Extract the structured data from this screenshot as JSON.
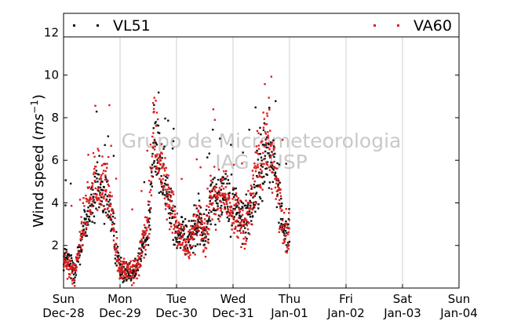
{
  "watermark": {
    "line1": "Grupo de Micrometeorologia",
    "line2": "IAG - USP"
  },
  "chart_data": {
    "type": "scatter",
    "title": "",
    "xlabel": "",
    "ylabel_main": "Wind speed (",
    "ylabel_unit": "ms",
    "ylabel_sup": "−1",
    "ylabel_close": ")",
    "xlim_days": [
      0,
      7
    ],
    "ylim": [
      0,
      12.9
    ],
    "yticks": [
      2,
      4,
      6,
      8,
      10,
      12
    ],
    "xticks": [
      {
        "day": 0,
        "weekday": "Sun",
        "date": "Dec-28"
      },
      {
        "day": 1,
        "weekday": "Mon",
        "date": "Dec-29"
      },
      {
        "day": 2,
        "weekday": "Tue",
        "date": "Dec-30"
      },
      {
        "day": 3,
        "weekday": "Wed",
        "date": "Dec-31"
      },
      {
        "day": 4,
        "weekday": "Thu",
        "date": "Jan-01"
      },
      {
        "day": 5,
        "weekday": "Fri",
        "date": "Jan-02"
      },
      {
        "day": 6,
        "weekday": "Sat",
        "date": "Jan-03"
      },
      {
        "day": 7,
        "weekday": "Sun",
        "date": "Jan-04"
      }
    ],
    "grid": "vertical",
    "legend_placement": "top",
    "series": [
      {
        "name": "VL51",
        "color": "#111111",
        "profile": [
          [
            0.0,
            1.5
          ],
          [
            0.2,
            0.9
          ],
          [
            0.4,
            3.3
          ],
          [
            0.6,
            4.6
          ],
          [
            0.8,
            4.1
          ],
          [
            0.92,
            2.0
          ],
          [
            1.0,
            0.9
          ],
          [
            1.3,
            0.9
          ],
          [
            1.4,
            2.0
          ],
          [
            1.5,
            3.0
          ],
          [
            1.6,
            7.0
          ],
          [
            1.8,
            4.6
          ],
          [
            1.9,
            4.0
          ],
          [
            2.0,
            2.7
          ],
          [
            2.2,
            2.2
          ],
          [
            2.4,
            3.2
          ],
          [
            2.5,
            2.3
          ],
          [
            2.6,
            4.0
          ],
          [
            2.8,
            4.6
          ],
          [
            3.0,
            3.9
          ],
          [
            3.2,
            3.1
          ],
          [
            3.4,
            4.6
          ],
          [
            3.6,
            6.5
          ],
          [
            3.75,
            5.5
          ],
          [
            3.9,
            2.6
          ],
          [
            4.0,
            2.7
          ]
        ]
      },
      {
        "name": "VA60",
        "color": "#e01c1c",
        "profile": [
          [
            0.0,
            1.2
          ],
          [
            0.2,
            0.7
          ],
          [
            0.4,
            3.8
          ],
          [
            0.6,
            5.2
          ],
          [
            0.8,
            4.5
          ],
          [
            0.92,
            2.0
          ],
          [
            1.0,
            0.8
          ],
          [
            1.3,
            0.8
          ],
          [
            1.4,
            2.1
          ],
          [
            1.5,
            3.2
          ],
          [
            1.6,
            7.5
          ],
          [
            1.8,
            4.8
          ],
          [
            1.9,
            4.0
          ],
          [
            2.0,
            2.6
          ],
          [
            2.2,
            2.0
          ],
          [
            2.4,
            3.2
          ],
          [
            2.5,
            2.3
          ],
          [
            2.6,
            4.2
          ],
          [
            2.8,
            4.2
          ],
          [
            3.0,
            3.6
          ],
          [
            3.2,
            2.9
          ],
          [
            3.4,
            5.2
          ],
          [
            3.6,
            7.2
          ],
          [
            3.75,
            5.6
          ],
          [
            3.9,
            2.5
          ],
          [
            4.0,
            2.6
          ]
        ]
      }
    ]
  }
}
